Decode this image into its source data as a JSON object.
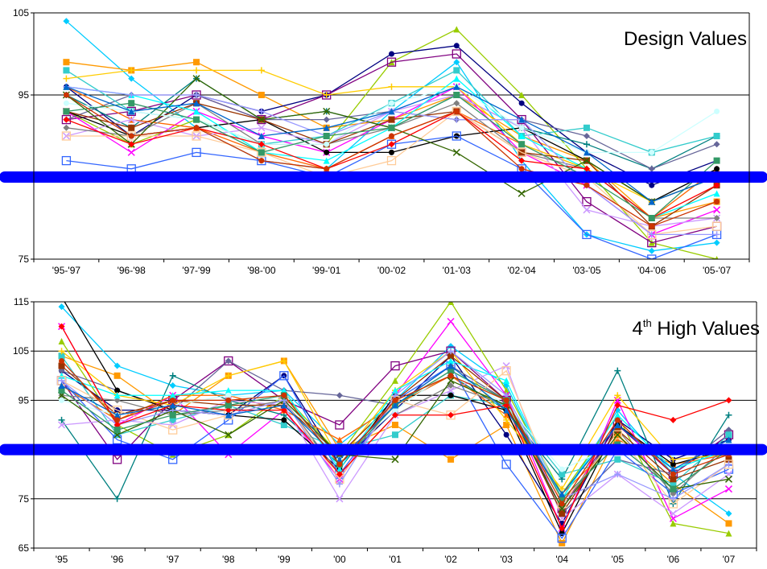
{
  "colors": {
    "threshold": "#0000ff",
    "palette": [
      "#00ccff",
      "#ff9900",
      "#99cc00",
      "#000080",
      "#800080",
      "#ff00ff",
      "#008080",
      "#666699",
      "#33cccc",
      "#ff6600",
      "#000000",
      "#3366ff",
      "#cc99ff",
      "#ffcc00",
      "#808080",
      "#993300",
      "#00ffff",
      "#ccffff",
      "#ffcc99",
      "#336600",
      "#9999ff",
      "#ff0000",
      "#339966",
      "#0066cc",
      "#cc3300"
    ]
  },
  "chart_data": [
    {
      "type": "line",
      "title": "Design Values",
      "categories": [
        "'95-'97",
        "'96-'98",
        "'97-'99",
        "'98-'00",
        "'99-'01",
        "'00-'02",
        "'01-'03",
        "'02-'04",
        "'03-'05",
        "'04-'06",
        "'05-'07"
      ],
      "yticks": [
        "75",
        "85",
        "95",
        "105"
      ],
      "ylim": [
        75,
        105
      ],
      "threshold": 85,
      "grid": "horizontal",
      "series": [
        {
          "values": [
            104,
            97,
            91,
            87,
            86,
            93,
            99,
            87,
            78,
            76,
            77
          ]
        },
        {
          "values": [
            99,
            98,
            99,
            95,
            91,
            92,
            95,
            90,
            87,
            80,
            82
          ]
        },
        {
          "values": [
            93,
            89,
            92,
            89,
            89,
            99,
            103,
            95,
            86,
            77,
            75
          ]
        },
        {
          "values": [
            96,
            90,
            95,
            93,
            95,
            100,
            101,
            94,
            88,
            84,
            87
          ]
        },
        {
          "values": [
            92,
            93,
            95,
            92,
            95,
            99,
            100,
            92,
            82,
            77,
            79
          ]
        },
        {
          "values": [
            93,
            88,
            93,
            90,
            88,
            92,
            96,
            88,
            84,
            78,
            81
          ]
        },
        {
          "values": [
            95,
            91,
            97,
            92,
            93,
            91,
            95,
            91,
            89,
            86,
            90
          ]
        },
        {
          "values": [
            92,
            95,
            95,
            92,
            92,
            93,
            92,
            92,
            90,
            86,
            89
          ]
        },
        {
          "values": [
            98,
            93,
            92,
            89,
            90,
            94,
            98,
            90,
            91,
            88,
            90
          ]
        },
        {
          "values": [
            96,
            92,
            91,
            88,
            86,
            90,
            93,
            89,
            86,
            80,
            86
          ]
        },
        {
          "values": [
            93,
            90,
            91,
            92,
            88,
            88,
            90,
            91,
            87,
            82,
            86
          ]
        },
        {
          "values": [
            87,
            86,
            88,
            87,
            85,
            89,
            90,
            86,
            78,
            75,
            78
          ]
        },
        {
          "values": [
            90,
            92,
            90,
            91,
            89,
            93,
            95,
            91,
            81,
            79,
            80
          ]
        },
        {
          "values": [
            97,
            98,
            98,
            98,
            95,
            96,
            96,
            89,
            86,
            82,
            85
          ]
        },
        {
          "values": [
            91,
            90,
            94,
            89,
            89,
            91,
            94,
            88,
            86,
            80,
            80
          ]
        },
        {
          "values": [
            93,
            91,
            94,
            92,
            89,
            92,
            93,
            88,
            87,
            79,
            84
          ]
        },
        {
          "values": [
            96,
            95,
            93,
            88,
            87,
            91,
            97,
            90,
            86,
            80,
            83
          ]
        },
        {
          "values": [
            94,
            93,
            92,
            89,
            89,
            94,
            96,
            91,
            88,
            88,
            93
          ]
        },
        {
          "values": [
            90,
            90,
            90,
            88,
            85,
            87,
            93,
            88,
            85,
            78,
            79
          ]
        },
        {
          "values": [
            95,
            89,
            97,
            92,
            93,
            91,
            88,
            83,
            87,
            82,
            85
          ]
        },
        {
          "values": [
            96,
            95,
            95,
            93,
            90,
            93,
            92,
            92,
            84,
            78,
            78
          ]
        },
        {
          "values": [
            92,
            89,
            91,
            89,
            86,
            89,
            93,
            87,
            86,
            80,
            84
          ]
        },
        {
          "values": [
            93,
            94,
            92,
            88,
            90,
            91,
            95,
            89,
            85,
            80,
            87
          ]
        },
        {
          "values": [
            96,
            93,
            94,
            90,
            91,
            93,
            96,
            92,
            88,
            82,
            85
          ]
        },
        {
          "values": [
            95,
            90,
            91,
            87,
            86,
            90,
            93,
            86,
            84,
            79,
            82
          ]
        }
      ]
    },
    {
      "type": "line",
      "title": "4th High Values",
      "title_parts": {
        "main_prefix": "4",
        "sup": "th",
        "main_suffix": " High Values"
      },
      "categories": [
        "'95",
        "'96",
        "'97",
        "'98",
        "'99",
        "'00",
        "'01",
        "'02",
        "'03",
        "'04",
        "'05",
        "'06",
        "'07"
      ],
      "yticks": [
        "65",
        "75",
        "85",
        "95",
        "105",
        "115"
      ],
      "ylim": [
        65,
        115
      ],
      "threshold": 85,
      "grid": "horizontal",
      "series": [
        {
          "values": [
            114,
            102,
            98,
            96,
            97,
            86,
            95,
            106,
            98,
            75,
            93,
            80,
            72
          ]
        },
        {
          "values": [
            104,
            100,
            92,
            100,
            103,
            85,
            90,
            83,
            90,
            66,
            88,
            78,
            70
          ]
        },
        {
          "values": [
            107,
            90,
            84,
            88,
            96,
            84,
            99,
            115,
            97,
            76,
            92,
            70,
            68
          ]
        },
        {
          "values": [
            101,
            93,
            93,
            92,
            100,
            82,
            93,
            104,
            88,
            70,
            91,
            83,
            87
          ]
        },
        {
          "values": [
            99,
            83,
            95,
            103,
            95,
            90,
            102,
            105,
            95,
            73,
            90,
            80,
            88
          ]
        },
        {
          "values": [
            110,
            90,
            96,
            84,
            93,
            79,
            96,
            111,
            96,
            69,
            95,
            71,
            77
          ]
        },
        {
          "values": [
            91,
            75,
            100,
            95,
            92,
            82,
            94,
            100,
            93,
            79,
            101,
            74,
            92
          ]
        },
        {
          "values": [
            101,
            97,
            93,
            103,
            97,
            96,
            94,
            102,
            95,
            72,
            83,
            80,
            89
          ]
        },
        {
          "values": [
            104,
            88,
            91,
            94,
            90,
            85,
            88,
            96,
            94,
            80,
            83,
            78,
            88
          ]
        },
        {
          "values": [
            98,
            91,
            96,
            96,
            93,
            87,
            94,
            100,
            92,
            76,
            87,
            82,
            84
          ]
        },
        {
          "values": [
            116,
            97,
            93,
            92,
            91,
            81,
            96,
            96,
            93,
            68,
            90,
            82,
            85
          ]
        },
        {
          "values": [
            99,
            87,
            83,
            91,
            100,
            80,
            95,
            102,
            82,
            67,
            85,
            76,
            81
          ]
        },
        {
          "values": [
            90,
            91,
            90,
            95,
            94,
            75,
            92,
            97,
            102,
            71,
            80,
            72,
            80
          ]
        },
        {
          "values": [
            105,
            96,
            94,
            100,
            103,
            83,
            97,
            105,
            91,
            77,
            96,
            83,
            84
          ]
        },
        {
          "values": [
            96,
            95,
            92,
            93,
            95,
            80,
            92,
            98,
            94,
            73,
            89,
            76,
            86
          ]
        },
        {
          "values": [
            102,
            92,
            95,
            94,
            94,
            84,
            95,
            104,
            95,
            72,
            89,
            79,
            83
          ]
        },
        {
          "values": [
            100,
            96,
            96,
            97,
            97,
            81,
            97,
            103,
            99,
            75,
            92,
            81,
            85
          ]
        },
        {
          "values": [
            95,
            92,
            94,
            96,
            95,
            83,
            93,
            101,
            94,
            81,
            86,
            84,
            86
          ]
        },
        {
          "values": [
            99,
            93,
            89,
            92,
            95,
            79,
            95,
            92,
            101,
            74,
            88,
            74,
            82
          ]
        },
        {
          "values": [
            96,
            88,
            93,
            88,
            95,
            84,
            83,
            99,
            94,
            73,
            88,
            77,
            79
          ]
        },
        {
          "values": [
            99,
            90,
            93,
            92,
            95,
            78,
            96,
            105,
            96,
            75,
            80,
            75,
            82
          ]
        },
        {
          "values": [
            110,
            90,
            94,
            93,
            93,
            80,
            92,
            92,
            94,
            69,
            94,
            91,
            95
          ]
        },
        {
          "values": [
            97,
            89,
            92,
            94,
            96,
            82,
            94,
            101,
            95,
            75,
            86,
            77,
            85
          ]
        },
        {
          "values": [
            98,
            92,
            94,
            92,
            94,
            83,
            94,
            102,
            93,
            76,
            90,
            81,
            87
          ]
        },
        {
          "values": [
            103,
            91,
            95,
            95,
            96,
            82,
            95,
            100,
            95,
            74,
            91,
            80,
            84
          ]
        }
      ]
    }
  ]
}
